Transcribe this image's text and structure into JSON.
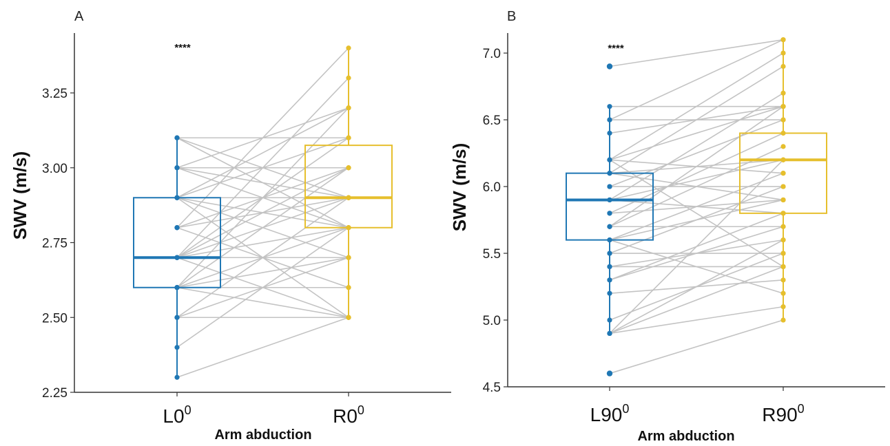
{
  "colors": {
    "left": "#1f77b4",
    "right": "#e6bf2d",
    "pair_line": "#c3c3c3",
    "axis": "#333333"
  },
  "chart_data": [
    {
      "type": "box-paired-scatter",
      "panel": "A",
      "ylabel": "SWV (m/s)",
      "xlabel": "Arm abduction",
      "categories": [
        {
          "base": "L0",
          "sup": "0"
        },
        {
          "base": "R0",
          "sup": "0"
        }
      ],
      "ylim": [
        2.25,
        3.45
      ],
      "yticks": [
        "2.25",
        "2.50",
        "2.75",
        "3.00",
        "3.25"
      ],
      "significance": "****",
      "boxes": [
        {
          "q1": 2.6,
          "median": 2.7,
          "q3": 2.9,
          "whisker_low": 2.3,
          "whisker_high": 3.1
        },
        {
          "q1": 2.8,
          "median": 2.9,
          "q3": 3.075,
          "whisker_low": 2.5,
          "whisker_high": 3.4
        }
      ],
      "pairs": [
        [
          2.3,
          2.5
        ],
        [
          2.4,
          2.8
        ],
        [
          2.5,
          2.5
        ],
        [
          2.5,
          2.9
        ],
        [
          2.5,
          2.7
        ],
        [
          2.6,
          2.6
        ],
        [
          2.6,
          3.0
        ],
        [
          2.6,
          2.7
        ],
        [
          2.6,
          3.2
        ],
        [
          2.6,
          2.5
        ],
        [
          2.6,
          2.8
        ],
        [
          2.7,
          2.7
        ],
        [
          2.7,
          3.1
        ],
        [
          2.7,
          2.9
        ],
        [
          2.7,
          3.3
        ],
        [
          2.7,
          2.8
        ],
        [
          2.7,
          2.5
        ],
        [
          2.7,
          3.0
        ],
        [
          2.8,
          3.0
        ],
        [
          2.8,
          2.6
        ],
        [
          2.8,
          2.9
        ],
        [
          2.8,
          3.4
        ],
        [
          2.9,
          2.9
        ],
        [
          2.9,
          2.8
        ],
        [
          2.9,
          3.1
        ],
        [
          2.9,
          2.7
        ],
        [
          2.9,
          3.2
        ],
        [
          2.9,
          2.5
        ],
        [
          3.0,
          3.0
        ],
        [
          3.0,
          2.8
        ],
        [
          3.0,
          3.2
        ],
        [
          3.0,
          2.9
        ],
        [
          3.1,
          3.1
        ],
        [
          3.1,
          2.9
        ],
        [
          3.1,
          2.8
        ]
      ]
    },
    {
      "type": "box-paired-scatter",
      "panel": "B",
      "ylabel": "SWV (m/s)",
      "xlabel": "Arm abduction",
      "categories": [
        {
          "base": "L90",
          "sup": "0"
        },
        {
          "base": "R90",
          "sup": "0"
        }
      ],
      "ylim": [
        4.5,
        7.15
      ],
      "yticks": [
        "4.5",
        "5.0",
        "5.5",
        "6.0",
        "6.5",
        "7.0"
      ],
      "significance": "****",
      "boxes": [
        {
          "q1": 5.6,
          "median": 5.9,
          "q3": 6.1,
          "whisker_low": 4.9,
          "whisker_high": 6.6
        },
        {
          "q1": 5.8,
          "median": 6.2,
          "q3": 6.4,
          "whisker_low": 5.0,
          "whisker_high": 7.1
        }
      ],
      "outliers": [
        {
          "group": 0,
          "value": 4.6
        },
        {
          "group": 0,
          "value": 6.9
        }
      ],
      "pairs": [
        [
          4.6,
          5.0
        ],
        [
          4.9,
          5.6
        ],
        [
          4.9,
          5.1
        ],
        [
          4.9,
          5.4
        ],
        [
          4.9,
          6.2
        ],
        [
          5.0,
          5.5
        ],
        [
          5.2,
          5.3
        ],
        [
          5.3,
          5.8
        ],
        [
          5.3,
          5.7
        ],
        [
          5.4,
          5.6
        ],
        [
          5.4,
          5.4
        ],
        [
          5.5,
          5.5
        ],
        [
          5.5,
          6.0
        ],
        [
          5.6,
          5.9
        ],
        [
          5.6,
          6.1
        ],
        [
          5.6,
          5.2
        ],
        [
          5.7,
          6.3
        ],
        [
          5.7,
          5.7
        ],
        [
          5.7,
          6.6
        ],
        [
          5.8,
          5.9
        ],
        [
          5.8,
          6.4
        ],
        [
          5.9,
          6.2
        ],
        [
          5.9,
          5.8
        ],
        [
          5.9,
          6.7
        ],
        [
          6.0,
          6.0
        ],
        [
          6.0,
          6.5
        ],
        [
          6.1,
          6.2
        ],
        [
          6.1,
          5.9
        ],
        [
          6.1,
          6.9
        ],
        [
          6.2,
          6.6
        ],
        [
          6.2,
          6.1
        ],
        [
          6.2,
          7.0
        ],
        [
          6.2,
          5.4
        ],
        [
          6.4,
          6.6
        ],
        [
          6.5,
          6.5
        ],
        [
          6.5,
          7.1
        ],
        [
          6.6,
          6.6
        ],
        [
          6.9,
          7.1
        ]
      ]
    }
  ]
}
